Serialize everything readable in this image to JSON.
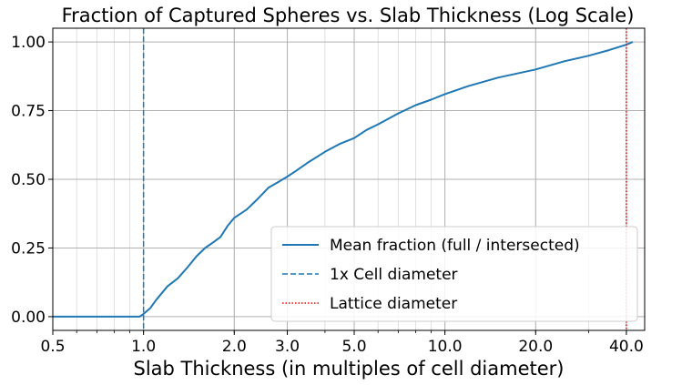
{
  "chart_data": {
    "type": "line",
    "title": "Fraction of Captured Spheres vs. Slab Thickness (Log Scale)",
    "xlabel": "Slab Thickness (in multiples of cell diameter)",
    "ylabel": "",
    "xscale": "log",
    "xlim": [
      0.5,
      46
    ],
    "ylim": [
      -0.05,
      1.05
    ],
    "xticks": [
      0.5,
      1.0,
      2.0,
      3.0,
      5.0,
      10.0,
      20.0,
      40.0
    ],
    "xtick_labels": [
      "0.5",
      "1.0",
      "2.0",
      "3.0",
      "5.0",
      "10.0",
      "20.0",
      "40.0"
    ],
    "yticks": [
      0.0,
      0.25,
      0.5,
      0.75,
      1.0
    ],
    "ytick_labels": [
      "0.00",
      "0.25",
      "0.50",
      "0.75",
      "1.00"
    ],
    "grid": true,
    "legend_position": "lower-right",
    "series": [
      {
        "name": "Mean fraction (full / intersected)",
        "color": "#1f77b4",
        "style": "solid",
        "x": [
          0.5,
          0.7,
          0.9,
          0.97,
          1.0,
          1.05,
          1.1,
          1.2,
          1.3,
          1.4,
          1.5,
          1.6,
          1.7,
          1.8,
          1.9,
          2.0,
          2.2,
          2.4,
          2.6,
          2.8,
          3.0,
          3.2,
          3.5,
          4.0,
          4.5,
          5.0,
          5.5,
          6.0,
          7.0,
          8.0,
          9.0,
          10.0,
          12.0,
          15.0,
          20.0,
          25.0,
          30.0,
          35.0,
          40.0,
          42.0
        ],
        "y": [
          0.0,
          0.0,
          0.0,
          0.0,
          0.01,
          0.03,
          0.06,
          0.11,
          0.14,
          0.18,
          0.22,
          0.25,
          0.27,
          0.29,
          0.33,
          0.36,
          0.39,
          0.43,
          0.47,
          0.49,
          0.51,
          0.53,
          0.56,
          0.6,
          0.63,
          0.65,
          0.68,
          0.7,
          0.74,
          0.77,
          0.79,
          0.81,
          0.84,
          0.87,
          0.9,
          0.93,
          0.95,
          0.97,
          0.99,
          1.0
        ]
      },
      {
        "name": "1x Cell diameter",
        "color": "#1f77b4",
        "style": "dashed",
        "vline_x": 1.0
      },
      {
        "name": "Lattice diameter",
        "color": "#ff0000",
        "style": "dotted",
        "vline_x": 40.0
      }
    ]
  }
}
